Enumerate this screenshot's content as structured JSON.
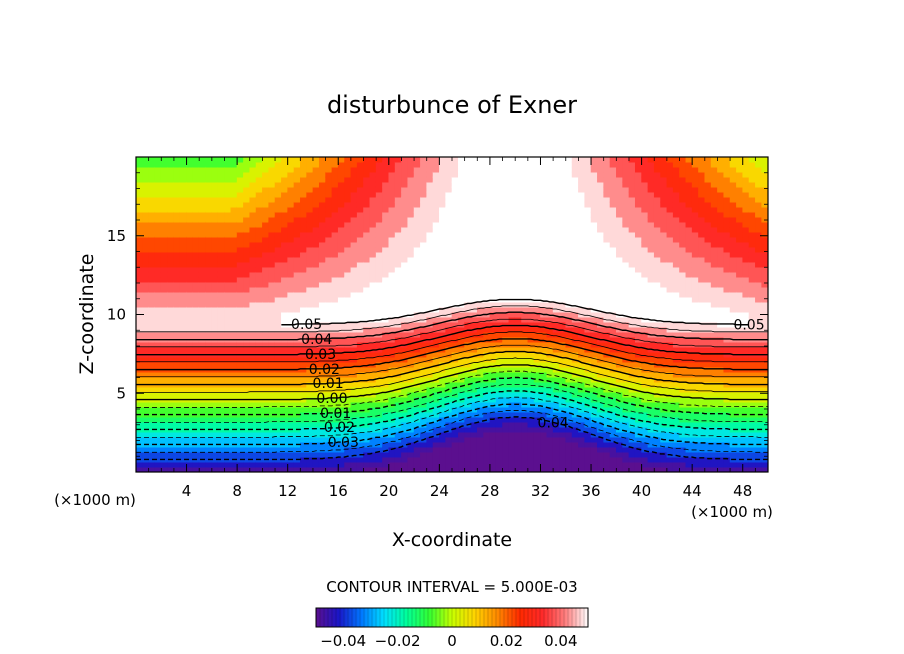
{
  "chart_data": {
    "type": "contour",
    "title": "disturbunce of Exner",
    "xlabel": "X-coordinate",
    "ylabel": "Z-coordinate",
    "x_unit_left": "(×1000 m)",
    "x_unit_right": "(×1000 m)",
    "xlim": [
      0,
      50
    ],
    "ylim": [
      0,
      20
    ],
    "xticks": [
      4,
      8,
      12,
      16,
      20,
      24,
      28,
      32,
      36,
      40,
      44,
      48
    ],
    "yticks": [
      5,
      10,
      15
    ],
    "contour_interval_text": "CONTOUR INTERVAL = 5.000E-03",
    "field": {
      "description_of_shape": "horizontally layered field increasing with height, lifted over a central bump near x=30",
      "bump_center_x": 30,
      "bump_halfwidth_x": 8,
      "bump_height_z": 3.2
    },
    "contour_levels": [
      -0.04,
      -0.035,
      -0.03,
      -0.025,
      -0.02,
      -0.015,
      -0.01,
      -0.005,
      0.0,
      0.005,
      0.01,
      0.015,
      0.02,
      0.025,
      0.03,
      0.035,
      0.04,
      0.045,
      0.05
    ],
    "contour_labels": [
      {
        "text": "0.05",
        "level": 0.05
      },
      {
        "text": "0.04",
        "level": 0.04
      },
      {
        "text": "0.03",
        "level": 0.03
      },
      {
        "text": "0.02",
        "level": 0.02
      },
      {
        "text": "0.01",
        "level": 0.01
      },
      {
        "text": "0.00",
        "level": 0.0
      },
      {
        "text": "0.01",
        "level": -0.01
      },
      {
        "text": "0.02",
        "level": -0.02
      },
      {
        "text": "0.03",
        "level": -0.03
      },
      {
        "text": "0.04",
        "level": -0.04
      },
      {
        "text": "0.05",
        "level": 0.05
      }
    ],
    "colorbar": {
      "range": [
        -0.05,
        0.05
      ],
      "tick_labels": [
        "−0.04",
        "−0.02",
        "0",
        "0.02",
        "0.04"
      ],
      "tick_values": [
        -0.04,
        -0.02,
        0,
        0.02,
        0.04
      ]
    },
    "colormap": [
      "#5b0f8f",
      "#1a16c8",
      "#0077ff",
      "#00e0ff",
      "#00ff9a",
      "#33ff33",
      "#c8ff00",
      "#ffd400",
      "#ff8a00",
      "#ff2a00",
      "#ff2a2a",
      "#ff7f7f",
      "#ffffff"
    ]
  }
}
